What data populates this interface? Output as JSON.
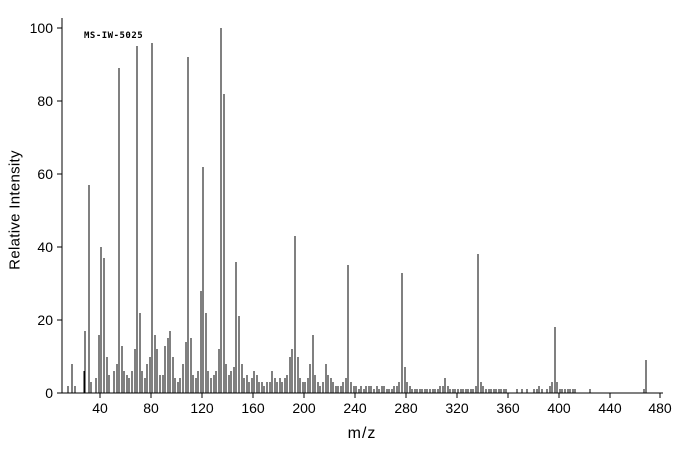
{
  "chart_data": {
    "type": "bar",
    "subtype": "mass-spectrum",
    "annotation": "MS-IW-5025",
    "xlabel": "m/z",
    "ylabel": "Relative Intensity",
    "xlim": [
      10,
      482
    ],
    "ylim": [
      0,
      100
    ],
    "x_ticks": [
      40,
      80,
      120,
      160,
      200,
      240,
      280,
      320,
      360,
      400,
      440,
      480
    ],
    "y_ticks": [
      0,
      20,
      40,
      60,
      80,
      100
    ],
    "grid": false,
    "legend": false,
    "background_color": "#ffffff",
    "axis_color": "#000000",
    "peak_color": "#000000",
    "peaks": [
      [
        15,
        2
      ],
      [
        18,
        8
      ],
      [
        20,
        2
      ],
      [
        27,
        6
      ],
      [
        28,
        17
      ],
      [
        31,
        57
      ],
      [
        33,
        3
      ],
      [
        37,
        4
      ],
      [
        39,
        16
      ],
      [
        41,
        40
      ],
      [
        43,
        37
      ],
      [
        45,
        10
      ],
      [
        47,
        5
      ],
      [
        51,
        6
      ],
      [
        53,
        8
      ],
      [
        55,
        89
      ],
      [
        57,
        13
      ],
      [
        59,
        6
      ],
      [
        61,
        5
      ],
      [
        63,
        4
      ],
      [
        65,
        6
      ],
      [
        67,
        12
      ],
      [
        69,
        95
      ],
      [
        71,
        22
      ],
      [
        73,
        6
      ],
      [
        75,
        4
      ],
      [
        77,
        8
      ],
      [
        79,
        10
      ],
      [
        81,
        96
      ],
      [
        83,
        16
      ],
      [
        85,
        12
      ],
      [
        87,
        5
      ],
      [
        89,
        5
      ],
      [
        91,
        13
      ],
      [
        93,
        15
      ],
      [
        95,
        17
      ],
      [
        97,
        10
      ],
      [
        99,
        4
      ],
      [
        101,
        3
      ],
      [
        103,
        4
      ],
      [
        105,
        8
      ],
      [
        107,
        14
      ],
      [
        109,
        92
      ],
      [
        111,
        15
      ],
      [
        113,
        5
      ],
      [
        115,
        4
      ],
      [
        117,
        6
      ],
      [
        119,
        28
      ],
      [
        121,
        62
      ],
      [
        123,
        22
      ],
      [
        125,
        6
      ],
      [
        127,
        4
      ],
      [
        129,
        5
      ],
      [
        131,
        6
      ],
      [
        133,
        12
      ],
      [
        135,
        100
      ],
      [
        137,
        82
      ],
      [
        139,
        8
      ],
      [
        141,
        5
      ],
      [
        143,
        6
      ],
      [
        145,
        7
      ],
      [
        147,
        36
      ],
      [
        149,
        21
      ],
      [
        151,
        8
      ],
      [
        153,
        4
      ],
      [
        155,
        5
      ],
      [
        157,
        3
      ],
      [
        159,
        4
      ],
      [
        161,
        6
      ],
      [
        163,
        5
      ],
      [
        165,
        3
      ],
      [
        167,
        3
      ],
      [
        169,
        2
      ],
      [
        171,
        3
      ],
      [
        173,
        3
      ],
      [
        175,
        6
      ],
      [
        177,
        4
      ],
      [
        179,
        3
      ],
      [
        181,
        4
      ],
      [
        183,
        3
      ],
      [
        185,
        4
      ],
      [
        187,
        5
      ],
      [
        189,
        10
      ],
      [
        191,
        12
      ],
      [
        193,
        43
      ],
      [
        195,
        10
      ],
      [
        197,
        4
      ],
      [
        199,
        3
      ],
      [
        201,
        3
      ],
      [
        203,
        4
      ],
      [
        205,
        8
      ],
      [
        207,
        16
      ],
      [
        209,
        5
      ],
      [
        211,
        3
      ],
      [
        213,
        2
      ],
      [
        215,
        3
      ],
      [
        217,
        8
      ],
      [
        219,
        5
      ],
      [
        221,
        4
      ],
      [
        223,
        3
      ],
      [
        225,
        2
      ],
      [
        227,
        2
      ],
      [
        229,
        2
      ],
      [
        231,
        3
      ],
      [
        233,
        4
      ],
      [
        235,
        35
      ],
      [
        237,
        3
      ],
      [
        239,
        2
      ],
      [
        241,
        2
      ],
      [
        243,
        1
      ],
      [
        245,
        2
      ],
      [
        247,
        1
      ],
      [
        249,
        2
      ],
      [
        251,
        2
      ],
      [
        253,
        2
      ],
      [
        255,
        1
      ],
      [
        257,
        2
      ],
      [
        259,
        1
      ],
      [
        261,
        2
      ],
      [
        263,
        2
      ],
      [
        265,
        1
      ],
      [
        267,
        1
      ],
      [
        269,
        1
      ],
      [
        271,
        2
      ],
      [
        273,
        2
      ],
      [
        275,
        3
      ],
      [
        277,
        33
      ],
      [
        279,
        7
      ],
      [
        281,
        3
      ],
      [
        283,
        2
      ],
      [
        285,
        1
      ],
      [
        287,
        1
      ],
      [
        289,
        1
      ],
      [
        291,
        1
      ],
      [
        293,
        1
      ],
      [
        295,
        1
      ],
      [
        297,
        1
      ],
      [
        299,
        1
      ],
      [
        301,
        1
      ],
      [
        303,
        1
      ],
      [
        305,
        1
      ],
      [
        307,
        2
      ],
      [
        309,
        2
      ],
      [
        311,
        4
      ],
      [
        313,
        2
      ],
      [
        315,
        1
      ],
      [
        317,
        1
      ],
      [
        319,
        1
      ],
      [
        321,
        1
      ],
      [
        323,
        1
      ],
      [
        325,
        1
      ],
      [
        327,
        1
      ],
      [
        329,
        1
      ],
      [
        331,
        1
      ],
      [
        333,
        1
      ],
      [
        335,
        2
      ],
      [
        337,
        38
      ],
      [
        339,
        3
      ],
      [
        341,
        2
      ],
      [
        343,
        1
      ],
      [
        345,
        1
      ],
      [
        347,
        1
      ],
      [
        349,
        1
      ],
      [
        351,
        1
      ],
      [
        353,
        1
      ],
      [
        355,
        1
      ],
      [
        357,
        1
      ],
      [
        359,
        1
      ],
      [
        367,
        1
      ],
      [
        371,
        1
      ],
      [
        375,
        1
      ],
      [
        381,
        1
      ],
      [
        383,
        1
      ],
      [
        385,
        2
      ],
      [
        387,
        1
      ],
      [
        391,
        1
      ],
      [
        393,
        2
      ],
      [
        395,
        3
      ],
      [
        397,
        18
      ],
      [
        399,
        3
      ],
      [
        401,
        1
      ],
      [
        403,
        1
      ],
      [
        405,
        1
      ],
      [
        407,
        1
      ],
      [
        409,
        1
      ],
      [
        411,
        1
      ],
      [
        413,
        1
      ],
      [
        425,
        1
      ],
      [
        467,
        1
      ],
      [
        469,
        9
      ]
    ]
  }
}
